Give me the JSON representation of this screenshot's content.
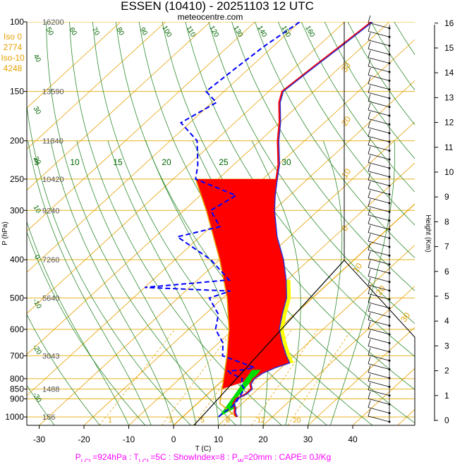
{
  "chart_data": {
    "type": "line",
    "title": "ESSEN (10410) - 20251103 12 UTC",
    "subtitle": "meteocentre.com",
    "xlabel": "T (C)",
    "ylabel": "P (hPa)",
    "right_label": "Height (Km)",
    "x_ticks": [
      "-30",
      "-20",
      "-10",
      "0",
      "10",
      "20",
      "30",
      "40"
    ],
    "p_ticks": [
      "100",
      "150",
      "200",
      "250",
      "300",
      "400",
      "500",
      "600",
      "700",
      "800",
      "850",
      "900",
      "1000"
    ],
    "height_ticks": [
      "0",
      "1",
      "2",
      "3",
      "4",
      "5",
      "6",
      "7",
      "8",
      "9",
      "10",
      "11",
      "12",
      "13",
      "14",
      "15",
      "16"
    ],
    "height_labels": [
      {
        "p": 100,
        "text": "16200"
      },
      {
        "p": 150,
        "text": "13590"
      },
      {
        "p": 200,
        "text": "11840"
      },
      {
        "p": 250,
        "text": "10420"
      },
      {
        "p": 300,
        "text": "9240"
      },
      {
        "p": 400,
        "text": "7260"
      },
      {
        "p": 500,
        "text": "5640"
      },
      {
        "p": 700,
        "text": "3043"
      },
      {
        "p": 850,
        "text": "1488"
      },
      {
        "p": 1000,
        "text": "156"
      }
    ],
    "iso_labels": [
      "Iso 0",
      "2774",
      "Iso-10",
      "4248"
    ],
    "dry_adiabat_labels": [
      "50",
      "60",
      "70",
      "80",
      "90",
      "100",
      "110",
      "120",
      "130",
      "140",
      "150",
      "160",
      "40",
      "30",
      "20",
      "10",
      "0",
      "-10",
      "-20",
      "-30"
    ],
    "moist_adiabat_labels": [
      "5",
      "10",
      "15",
      "20",
      "25",
      "30"
    ],
    "mixing_ratio_labels": [
      "1",
      "3",
      "5",
      "8",
      "12",
      "20"
    ],
    "temp_line_labels": [
      "30",
      "20",
      "10",
      "0",
      "10",
      "20",
      "30"
    ],
    "series": [
      {
        "name": "temperature",
        "color": "#ff0000",
        "points": [
          [
            1000,
            12
          ],
          [
            975,
            10.5
          ],
          [
            950,
            9.5
          ],
          [
            925,
            8
          ],
          [
            900,
            7.5
          ],
          [
            875,
            8.5
          ],
          [
            850,
            8.5
          ],
          [
            825,
            7
          ],
          [
            800,
            6.5
          ],
          [
            775,
            7
          ],
          [
            750,
            8.5
          ],
          [
            730,
            10.5
          ],
          [
            700,
            8
          ],
          [
            650,
            4
          ],
          [
            600,
            0
          ],
          [
            550,
            -3
          ],
          [
            500,
            -6
          ],
          [
            450,
            -10.5
          ],
          [
            400,
            -16
          ],
          [
            350,
            -23
          ],
          [
            300,
            -30
          ],
          [
            275,
            -33.5
          ],
          [
            250,
            -37
          ],
          [
            230,
            -40
          ],
          [
            200,
            -46
          ],
          [
            180,
            -50
          ],
          [
            160,
            -55
          ],
          [
            150,
            -57
          ],
          [
            130,
            -56
          ],
          [
            115,
            -55
          ],
          [
            100,
            -54
          ]
        ]
      },
      {
        "name": "dewpoint",
        "color": "#0000ff",
        "points": [
          [
            1000,
            8
          ],
          [
            975,
            8
          ],
          [
            950,
            8.5
          ],
          [
            925,
            8.5
          ],
          [
            900,
            8
          ],
          [
            875,
            7.5
          ],
          [
            850,
            7
          ],
          [
            825,
            5
          ],
          [
            800,
            4
          ],
          [
            775,
            0
          ],
          [
            765,
            -1
          ],
          [
            760,
            2
          ],
          [
            750,
            4
          ],
          [
            700,
            -6
          ],
          [
            650,
            -9
          ],
          [
            600,
            -14
          ],
          [
            550,
            -17
          ],
          [
            500,
            -23
          ],
          [
            480,
            -20
          ],
          [
            470,
            -40
          ],
          [
            450,
            -23
          ],
          [
            400,
            -32
          ],
          [
            350,
            -45
          ],
          [
            330,
            -38
          ],
          [
            300,
            -44
          ],
          [
            275,
            -42
          ],
          [
            250,
            -55
          ],
          [
            230,
            -58
          ],
          [
            200,
            -64
          ],
          [
            180,
            -72
          ],
          [
            160,
            -69
          ],
          [
            150,
            -74
          ],
          [
            130,
            -73
          ],
          [
            115,
            -72
          ],
          [
            100,
            -70
          ]
        ]
      },
      {
        "name": "parcel",
        "color": "#e6a000",
        "points": [
          [
            1000,
            12
          ],
          [
            924,
            5
          ],
          [
            850,
            2
          ],
          [
            700,
            -5
          ],
          [
            600,
            -11
          ],
          [
            500,
            -19
          ],
          [
            400,
            -30
          ],
          [
            300,
            -45
          ],
          [
            250,
            -55
          ]
        ]
      }
    ],
    "footer": {
      "lcl": "P<tspan baseline-shift='sub' font-size='9'>LCL</tspan>=924hPa",
      "parts": [
        "P",
        "LCL",
        "=924hPa : T",
        "LCL",
        "=5C : ShowIndex=8 : P",
        "W",
        "=20mm : CAPE= 0J/Kg"
      ]
    },
    "grid": true
  }
}
